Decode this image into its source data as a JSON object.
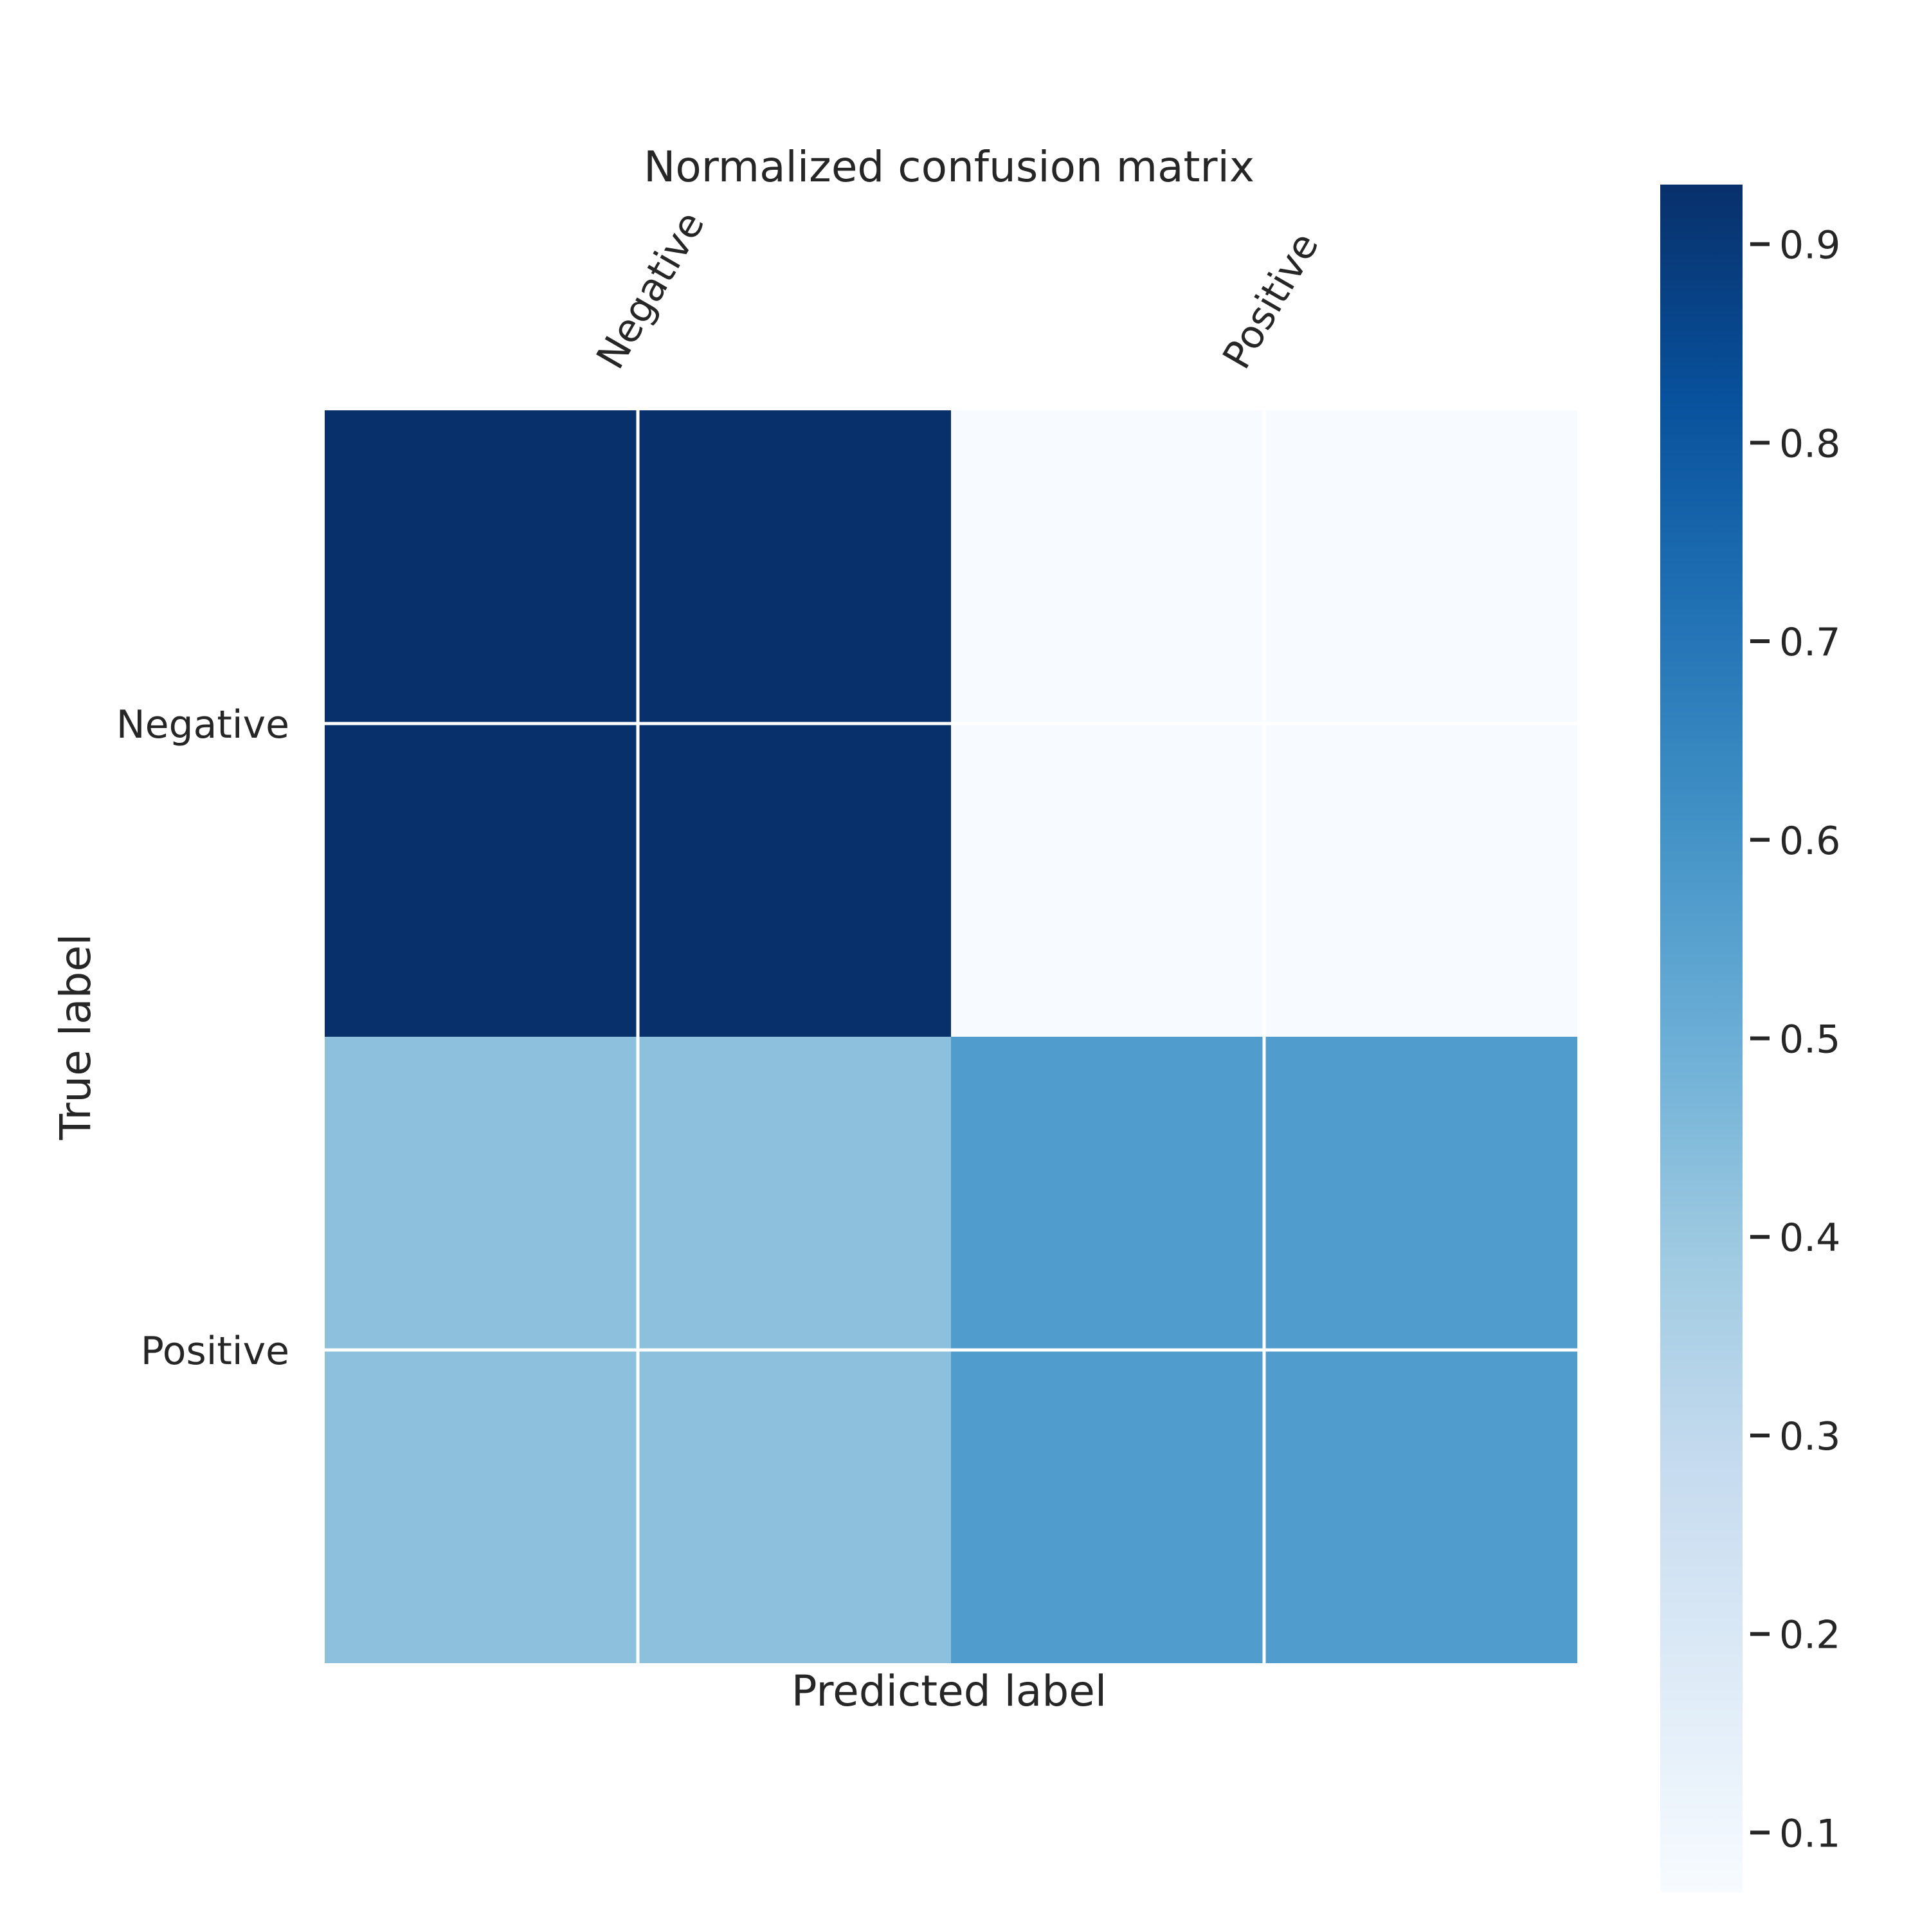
{
  "chart_data": {
    "type": "heatmap",
    "title": "Normalized confusion matrix",
    "xlabel": "Predicted label",
    "ylabel": "True label",
    "x_tick_labels": [
      "Negative",
      "Positive"
    ],
    "y_tick_labels": [
      "Negative",
      "Positive"
    ],
    "matrix": [
      [
        0.93,
        0.07
      ],
      [
        0.43,
        0.57
      ]
    ],
    "colormap": "Blues",
    "colorbar": {
      "vmin": 0.07,
      "vmax": 0.93,
      "ticks": [
        0.1,
        0.2,
        0.3,
        0.4,
        0.5,
        0.6,
        0.7,
        0.8,
        0.9
      ],
      "tick_labels": [
        "0.1",
        "0.2",
        "0.3",
        "0.4",
        "0.5",
        "0.6",
        "0.7",
        "0.8",
        "0.9"
      ]
    },
    "grid": true,
    "grid_color": "#ffffff"
  }
}
